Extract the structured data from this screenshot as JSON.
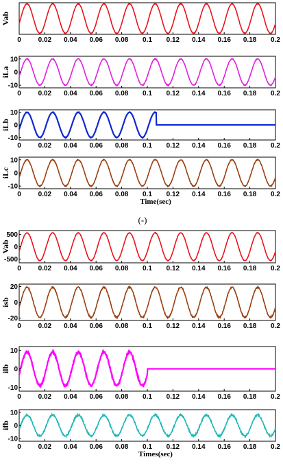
{
  "chart_data": [
    {
      "type": "line",
      "ylabel": "Vab",
      "xlim": [
        0,
        0.2
      ],
      "x_ticks": [
        "0",
        "0.02",
        "0.04",
        "0.06",
        "0.08",
        "0.1",
        "0.12",
        "0.14",
        "0.16",
        "0.18",
        "0.2"
      ],
      "y_ticks": [],
      "ylim": [
        -600,
        600
      ],
      "color": "#e8141c",
      "series": [
        {
          "freq_hz": 50,
          "amplitude": 560,
          "cutoff_s": null,
          "noise": 0.02
        }
      ]
    },
    {
      "type": "line",
      "ylabel": "iLa",
      "xlim": [
        0,
        0.2
      ],
      "x_ticks": [
        "0",
        "0.02",
        "0.04",
        "0.06",
        "0.08",
        "0.1",
        "0.12",
        "0.14",
        "0.16",
        "0.18",
        "0.2"
      ],
      "y_ticks": [
        "10",
        "0",
        "-10"
      ],
      "ylim": [
        -12,
        12
      ],
      "color": "#e020e0",
      "series": [
        {
          "freq_hz": 50,
          "amplitude": 10,
          "cutoff_s": null,
          "noise": 0.03
        }
      ]
    },
    {
      "type": "line",
      "ylabel": "iLb",
      "xlim": [
        0,
        0.2
      ],
      "x_ticks": [
        "0",
        "0.02",
        "0.04",
        "0.06",
        "0.08",
        "0.1",
        "0.12",
        "0.14",
        "0.16",
        "0.18",
        "0.2"
      ],
      "y_ticks": [
        "10",
        "0",
        "-10"
      ],
      "ylim": [
        -12,
        12
      ],
      "color": "#1028d0",
      "series": [
        {
          "freq_hz": 50,
          "amplitude": 10,
          "cutoff_s": 0.107,
          "noise": 0.02
        }
      ]
    },
    {
      "type": "line",
      "ylabel": "iLc",
      "xlim": [
        0,
        0.2
      ],
      "x_ticks": [
        "0",
        "0.02",
        "0.04",
        "0.06",
        "0.08",
        "0.1",
        "0.12",
        "0.14",
        "0.16",
        "0.18",
        "0.2"
      ],
      "y_ticks": [
        "10",
        "0",
        "-10"
      ],
      "ylim": [
        -12,
        12
      ],
      "color": "#9a4010",
      "series": [
        {
          "freq_hz": 50,
          "amplitude": 10,
          "cutoff_s": null,
          "noise": 0.03
        }
      ],
      "xlabel": "Time(sec)"
    },
    {
      "type": "line",
      "ylabel": "Vab",
      "xlim": [
        0,
        0.2
      ],
      "x_ticks": [
        "0",
        "0.02",
        "0.04",
        "0.06",
        "0.08",
        "0.1",
        "0.12",
        "0.14",
        "0.16",
        "0.18",
        "0.2"
      ],
      "y_ticks": [
        "500",
        "0",
        "-500"
      ],
      "ylim": [
        -650,
        650
      ],
      "color": "#e8141c",
      "series": [
        {
          "freq_hz": 50,
          "amplitude": 560,
          "cutoff_s": null,
          "noise": 0.02
        }
      ]
    },
    {
      "type": "line",
      "ylabel": "isb",
      "xlim": [
        0,
        0.2
      ],
      "x_ticks": [
        "0",
        "0.02",
        "0.04",
        "0.06",
        "0.08",
        "0.1",
        "0.12",
        "0.14",
        "0.16",
        "0.18",
        "0.2"
      ],
      "y_ticks": [
        "20",
        "0",
        "-20"
      ],
      "ylim": [
        -23,
        23
      ],
      "color": "#9a4010",
      "series": [
        {
          "freq_hz": 50,
          "amplitude": 19,
          "cutoff_s": null,
          "noise": 0.04
        }
      ]
    },
    {
      "type": "line",
      "ylabel": "ilb",
      "xlim": [
        0,
        0.2
      ],
      "x_ticks": [
        "0",
        "0.02",
        "0.04",
        "0.06",
        "0.08",
        "0.1",
        "0.12",
        "0.14",
        "0.16",
        "0.18",
        "0.2"
      ],
      "y_ticks": [
        "10",
        "0",
        "-10"
      ],
      "ylim": [
        -12,
        12
      ],
      "color": "#ff00ff",
      "series": [
        {
          "freq_hz": 50,
          "amplitude": 9,
          "cutoff_s": 0.1,
          "noise": 0.06
        }
      ]
    },
    {
      "type": "line",
      "ylabel": "ifb",
      "xlim": [
        0,
        0.2
      ],
      "x_ticks": [
        "0",
        "0.02",
        "0.04",
        "0.06",
        "0.08",
        "0.1",
        "0.12",
        "0.14",
        "0.16",
        "0.18",
        "0.2"
      ],
      "y_ticks": [
        "10",
        "0",
        "-10"
      ],
      "ylim": [
        -12,
        12
      ],
      "color": "#20b8b8",
      "series": [
        {
          "freq_hz": 50,
          "amplitude": 8,
          "cutoff_s": null,
          "noise": 0.08
        }
      ],
      "xlabel": "Times(sec)"
    }
  ],
  "caption": "(-)"
}
